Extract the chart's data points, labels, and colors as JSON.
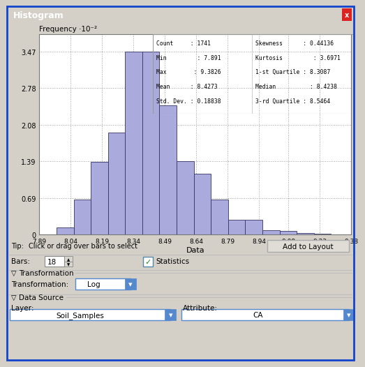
{
  "title": "Histogram",
  "xlabel": "Data",
  "ylabel": "Frequency ·10⁻²",
  "xlim": [
    7.89,
    9.38
  ],
  "ylim": [
    0,
    3.8
  ],
  "yticks": [
    0,
    0.69,
    1.39,
    2.08,
    2.78,
    3.47
  ],
  "xticks": [
    7.89,
    8.04,
    8.19,
    8.34,
    8.49,
    8.64,
    8.79,
    8.94,
    9.08,
    9.23,
    9.38
  ],
  "bar_edges": [
    7.89,
    7.972,
    8.054,
    8.136,
    8.218,
    8.3,
    8.382,
    8.464,
    8.546,
    8.628,
    8.71,
    8.792,
    8.874,
    8.956,
    9.038,
    9.12,
    9.202,
    9.284,
    9.38
  ],
  "bar_heights": [
    0.01,
    0.13,
    0.67,
    1.38,
    1.93,
    3.47,
    3.47,
    2.45,
    1.39,
    1.16,
    0.67,
    0.28,
    0.28,
    0.08,
    0.07,
    0.03,
    0.02,
    0.01
  ],
  "bar_color": "#aaaadd",
  "bar_edge_color": "#333366",
  "grid_color": "#888888",
  "bg_color": "#ffffff",
  "outer_bg": "#d4d0c8",
  "title_bg": "#1155bb",
  "title_color": "#ffffff",
  "stats_left_lines": [
    "Count     : 1741",
    "Min         : 7.891",
    "Max        : 9.3826",
    "Mean      : 8.4273",
    "Std. Dev. : 0.18838"
  ],
  "stats_right_lines": [
    "Skewness      : 0.44136",
    "Kurtosis         : 3.6971",
    "1-st Quartile : 8.3087",
    "Median          : 8.4238",
    "3-rd Quartile : 8.5464"
  ],
  "tip_text": "Click or drag over bars to select",
  "add_to_layout": "Add to Layout",
  "bars_label": "Bars:",
  "bars_value": "18",
  "statistics_label": "Statistics",
  "transformation_label": "Transformation",
  "transformation_value": "Log",
  "data_source_label": "Data Source",
  "layer_label": "Layer:",
  "layer_value": "Soil_Samples",
  "attribute_label": "Attribute:",
  "attribute_value": "CA"
}
